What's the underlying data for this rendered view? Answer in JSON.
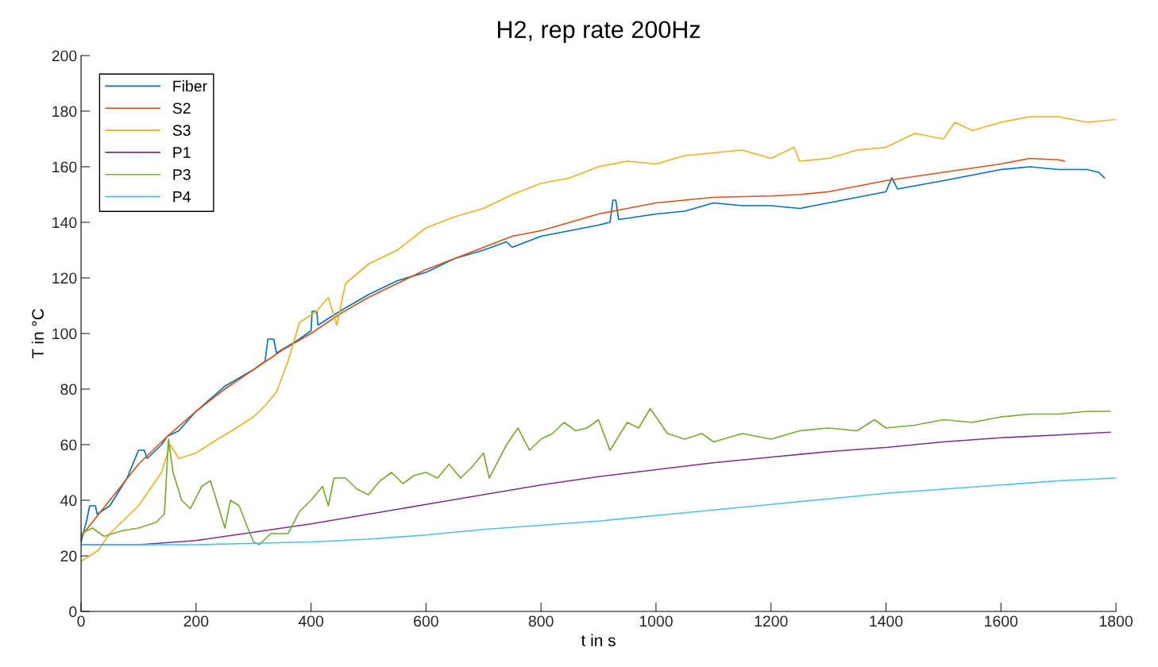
{
  "chart_data": {
    "type": "line",
    "title": "H2, rep rate 200Hz",
    "xlabel": "t in s",
    "ylabel": "T in °C",
    "xlim": [
      0,
      1800
    ],
    "ylim": [
      0,
      200
    ],
    "xticks": [
      0,
      200,
      400,
      600,
      800,
      1000,
      1200,
      1400,
      1600,
      1800
    ],
    "yticks": [
      0,
      20,
      40,
      60,
      80,
      100,
      120,
      140,
      160,
      180,
      200
    ],
    "grid": false,
    "legend": "top left",
    "marker": "none",
    "line_style": "solid",
    "series": [
      {
        "name": "Fiber",
        "color": "#0072bd",
        "x": [
          0,
          10,
          15,
          25,
          28,
          50,
          80,
          100,
          110,
          115,
          140,
          150,
          170,
          200,
          250,
          300,
          320,
          325,
          335,
          340,
          380,
          400,
          402,
          410,
          412,
          450,
          500,
          550,
          600,
          650,
          700,
          740,
          750,
          800,
          850,
          900,
          920,
          925,
          930,
          935,
          1000,
          1050,
          1100,
          1150,
          1200,
          1250,
          1300,
          1350,
          1400,
          1410,
          1420,
          1500,
          1550,
          1600,
          1650,
          1700,
          1750,
          1770,
          1780
        ],
        "values": [
          25,
          33,
          38,
          38,
          35,
          38,
          48,
          58,
          58,
          55,
          60,
          63,
          65,
          72,
          81,
          87,
          90,
          98,
          98,
          93,
          98,
          101,
          108,
          108,
          103,
          108,
          114,
          119,
          122,
          127,
          130,
          133,
          131,
          135,
          137,
          139,
          140,
          148,
          148,
          141,
          143,
          144,
          147,
          146,
          146,
          145,
          147,
          149,
          151,
          156,
          152,
          155,
          157,
          159,
          160,
          159,
          159,
          158,
          156
        ]
      },
      {
        "name": "S2",
        "color": "#d95319",
        "x": [
          0,
          50,
          100,
          150,
          200,
          250,
          300,
          350,
          400,
          450,
          500,
          550,
          600,
          650,
          700,
          750,
          800,
          850,
          900,
          950,
          1000,
          1100,
          1200,
          1250,
          1300,
          1400,
          1500,
          1600,
          1650,
          1700,
          1710
        ],
        "values": [
          27,
          40,
          53,
          63,
          72,
          80,
          87,
          94,
          100,
          107,
          113,
          118,
          123,
          127,
          131,
          135,
          137,
          140,
          143,
          145,
          147,
          149,
          149.5,
          150,
          151,
          155,
          158,
          161,
          163,
          162.5,
          162
        ]
      },
      {
        "name": "S3",
        "color": "#edb120",
        "x": [
          0,
          30,
          50,
          100,
          140,
          155,
          170,
          200,
          230,
          270,
          300,
          320,
          340,
          360,
          380,
          410,
          430,
          445,
          460,
          500,
          550,
          600,
          650,
          700,
          750,
          800,
          850,
          900,
          950,
          1000,
          1050,
          1100,
          1150,
          1200,
          1240,
          1250,
          1300,
          1350,
          1400,
          1450,
          1500,
          1520,
          1550,
          1600,
          1650,
          1700,
          1750,
          1800
        ],
        "values": [
          18,
          22,
          28,
          38,
          50,
          60,
          55,
          57,
          61,
          66,
          70,
          74,
          79,
          90,
          104,
          108,
          113,
          103,
          118,
          125,
          130,
          138,
          142,
          145,
          150,
          154,
          156,
          160,
          162,
          161,
          164,
          165,
          166,
          163,
          167,
          162,
          163,
          166,
          167,
          172,
          170,
          176,
          173,
          176,
          178,
          178,
          176,
          177
        ]
      },
      {
        "name": "P1",
        "color": "#7e2f8e",
        "x": [
          0,
          100,
          200,
          300,
          400,
          500,
          600,
          700,
          800,
          900,
          1000,
          1100,
          1200,
          1300,
          1400,
          1500,
          1600,
          1700,
          1790
        ],
        "values": [
          24,
          24,
          25.5,
          28.5,
          31.5,
          35,
          38.5,
          42,
          45.5,
          48.5,
          51,
          53.5,
          55.5,
          57.5,
          59,
          61,
          62.5,
          63.5,
          64.5
        ]
      },
      {
        "name": "P3",
        "color": "#77ac30",
        "x": [
          0,
          20,
          40,
          70,
          100,
          130,
          145,
          152,
          160,
          175,
          190,
          210,
          225,
          240,
          250,
          260,
          275,
          290,
          300,
          310,
          330,
          360,
          380,
          400,
          420,
          430,
          440,
          460,
          480,
          500,
          520,
          540,
          560,
          580,
          600,
          620,
          640,
          660,
          680,
          700,
          710,
          740,
          760,
          780,
          800,
          820,
          840,
          860,
          880,
          900,
          920,
          950,
          970,
          990,
          1000,
          1020,
          1050,
          1080,
          1100,
          1150,
          1200,
          1250,
          1300,
          1350,
          1380,
          1400,
          1450,
          1500,
          1550,
          1600,
          1650,
          1700,
          1750,
          1790
        ],
        "values": [
          28,
          30,
          27,
          29,
          30,
          32,
          35,
          62,
          50,
          40,
          37,
          45,
          47,
          37,
          30,
          40,
          38,
          30,
          25,
          24,
          28,
          28,
          36,
          40,
          45,
          38,
          48,
          48,
          44,
          42,
          47,
          50,
          46,
          49,
          50,
          48,
          53,
          48,
          52,
          57,
          48,
          60,
          66,
          58,
          62,
          64,
          68,
          65,
          66,
          69,
          58,
          68,
          66,
          73,
          70,
          64,
          62,
          64,
          61,
          64,
          62,
          65,
          66,
          65,
          69,
          66,
          67,
          69,
          68,
          70,
          71,
          71,
          72,
          72
        ]
      },
      {
        "name": "P4",
        "color": "#4dbeee",
        "x": [
          0,
          200,
          300,
          400,
          500,
          600,
          700,
          800,
          900,
          1000,
          1100,
          1200,
          1300,
          1400,
          1500,
          1600,
          1700,
          1800
        ],
        "values": [
          24,
          24,
          24.5,
          25,
          26,
          27.5,
          29.5,
          31,
          32.5,
          34.5,
          36.5,
          38.5,
          40.5,
          42.5,
          44,
          45.5,
          47,
          48
        ]
      }
    ]
  }
}
